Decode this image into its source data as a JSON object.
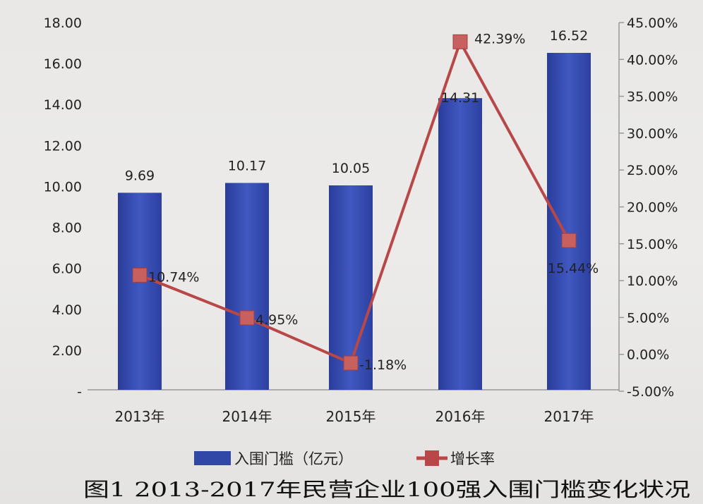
{
  "chart_data": {
    "type": "bar+line",
    "title": "图1 2013-2017年民营企业100强入围门槛变化状况",
    "categories": [
      "2013年",
      "2014年",
      "2015年",
      "2016年",
      "2017年"
    ],
    "series": [
      {
        "name": "入围门槛（亿元）",
        "type": "bar",
        "axis": "left",
        "values": [
          9.69,
          10.17,
          10.05,
          14.31,
          16.52
        ],
        "labels": [
          "9.69",
          "10.17",
          "10.05",
          "14.31",
          "16.52"
        ],
        "color": "#3047a8"
      },
      {
        "name": "增长率",
        "type": "line",
        "axis": "right",
        "values": [
          10.74,
          4.95,
          -1.18,
          42.39,
          15.44
        ],
        "labels": [
          "10.74%",
          "4.95%",
          "-1.18%",
          "42.39%",
          "15.44%"
        ],
        "color": "#b84848"
      }
    ],
    "left_axis": {
      "ylim": [
        0,
        18
      ],
      "ticks": [
        "-",
        "2.00",
        "4.00",
        "6.00",
        "8.00",
        "10.00",
        "12.00",
        "14.00",
        "16.00",
        "18.00"
      ]
    },
    "right_axis": {
      "ylim": [
        -5,
        45
      ],
      "ticks": [
        "-5.00%",
        "0.00%",
        "5.00%",
        "10.00%",
        "15.00%",
        "20.00%",
        "25.00%",
        "30.00%",
        "35.00%",
        "40.00%",
        "45.00%"
      ]
    },
    "grid": false,
    "legend_placement": "bottom"
  }
}
